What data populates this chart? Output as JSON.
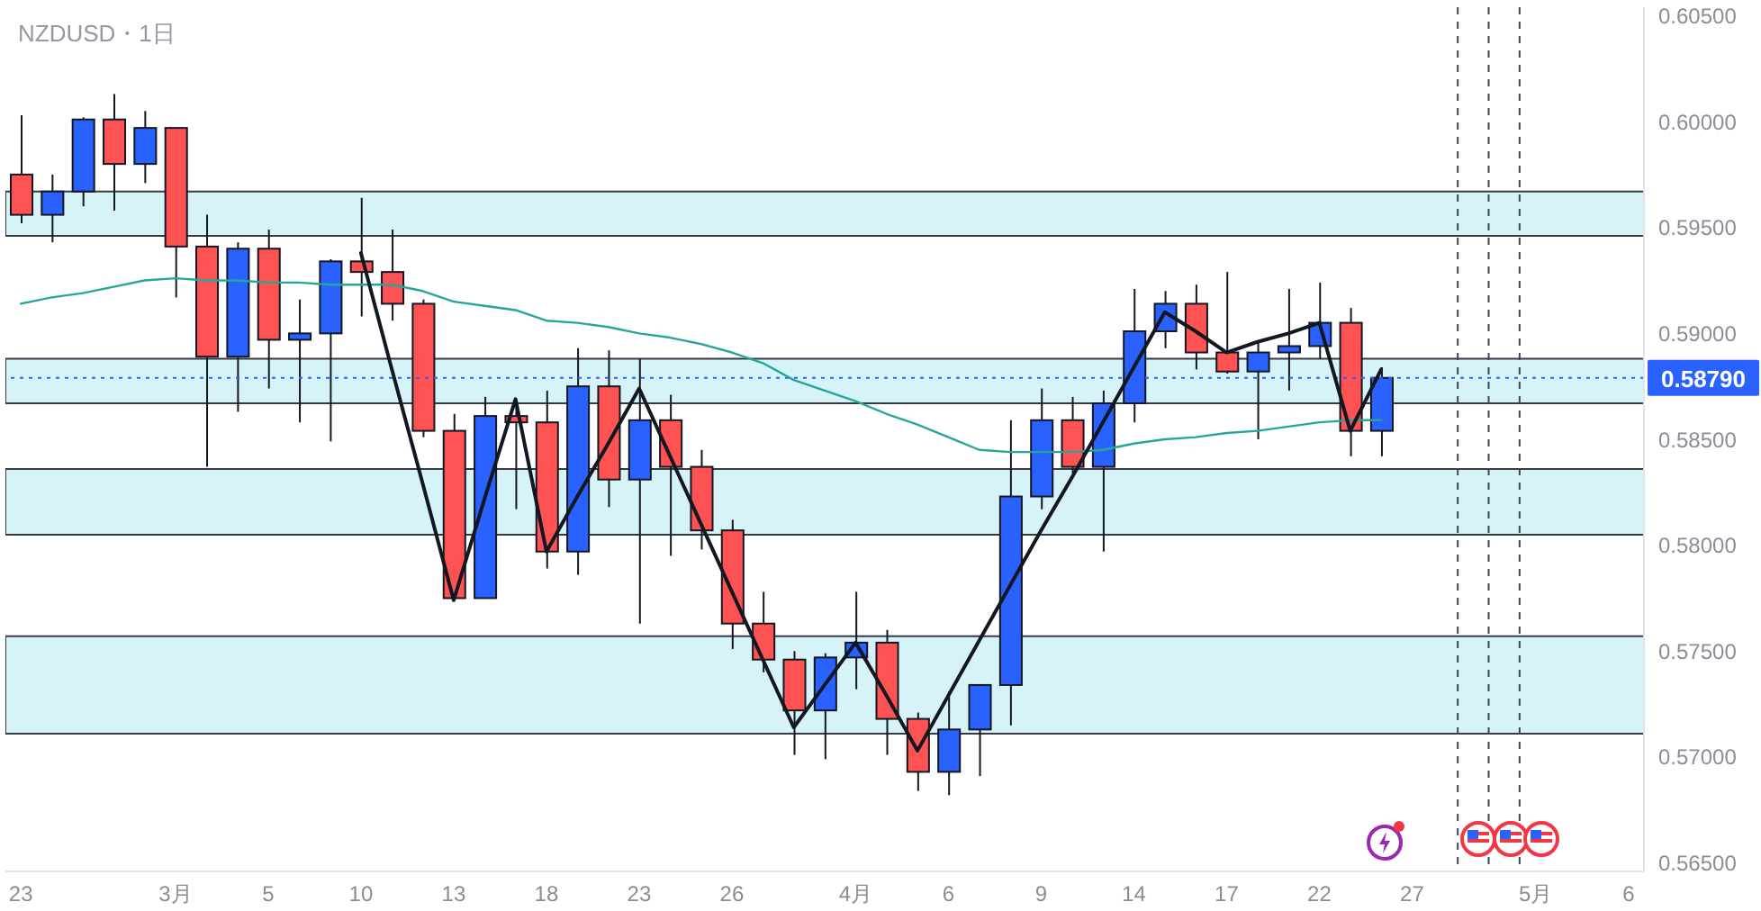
{
  "chart_data": {
    "type": "candlestick",
    "title": "NZDUSD・1日",
    "categories": [
      "23",
      null,
      null,
      null,
      null,
      "3月",
      null,
      null,
      "5",
      null,
      null,
      "10",
      null,
      null,
      "13",
      null,
      null,
      "18",
      null,
      null,
      "23",
      null,
      null,
      "26",
      null,
      null,
      null,
      "4月",
      null,
      null,
      "6",
      null,
      null,
      "9",
      null,
      null,
      "14",
      null,
      null,
      "17",
      null,
      null,
      "22",
      null,
      null,
      "27",
      null,
      null,
      null,
      "5月",
      null,
      null,
      "6"
    ],
    "ylim": [
      0.5646,
      0.6054
    ],
    "yticks": [
      {
        "value": 0.565,
        "label": "0.56500"
      },
      {
        "value": 0.57,
        "label": "0.57000"
      },
      {
        "value": 0.575,
        "label": "0.57500"
      },
      {
        "value": 0.58,
        "label": "0.58000"
      },
      {
        "value": 0.585,
        "label": "0.58500"
      },
      {
        "value": 0.59,
        "label": "0.59000"
      },
      {
        "value": 0.595,
        "label": "0.59500"
      },
      {
        "value": 0.6,
        "label": "0.60000"
      },
      {
        "value": 0.605,
        "label": "0.60500"
      }
    ],
    "series": [
      {
        "ohlc": [
          [
            0.5975,
            0.6003,
            0.5952,
            0.5956
          ],
          [
            0.5956,
            0.5975,
            0.5943,
            0.5967
          ],
          [
            0.5967,
            0.6002,
            0.596,
            0.6001
          ],
          [
            0.6001,
            0.6013,
            0.5958,
            0.598
          ],
          [
            0.598,
            0.6005,
            0.5971,
            0.5997
          ],
          [
            0.5997,
            0.5997,
            0.5917,
            0.5941
          ],
          [
            0.5941,
            0.5956,
            0.5837,
            0.5889
          ],
          [
            0.5889,
            0.5943,
            0.5863,
            0.594
          ],
          [
            0.594,
            0.5949,
            0.5874,
            0.5897
          ],
          [
            0.5897,
            0.5916,
            0.5858,
            0.59
          ],
          [
            0.59,
            0.5935,
            0.5849,
            0.5934
          ],
          [
            0.5934,
            0.5964,
            0.5908,
            0.5929
          ],
          [
            0.5929,
            0.5949,
            0.5906,
            0.5914
          ],
          [
            0.5914,
            0.5916,
            0.5851,
            0.5854
          ],
          [
            0.5854,
            0.5862,
            0.5774,
            0.5775
          ],
          [
            0.5775,
            0.587,
            0.5775,
            0.5861
          ],
          [
            0.5861,
            0.5869,
            0.5817,
            0.5858
          ],
          [
            0.5858,
            0.5873,
            0.5789,
            0.5797
          ],
          [
            0.5797,
            0.5893,
            0.5786,
            0.5875
          ],
          [
            0.5875,
            0.5892,
            0.5818,
            0.5831
          ],
          [
            0.5831,
            0.5888,
            0.5763,
            0.5859
          ],
          [
            0.5859,
            0.5871,
            0.5795,
            0.5837
          ],
          [
            0.5837,
            0.5845,
            0.5798,
            0.5807
          ],
          [
            0.5807,
            0.5812,
            0.5751,
            0.5763
          ],
          [
            0.5763,
            0.5778,
            0.574,
            0.5746
          ],
          [
            0.5746,
            0.575,
            0.5701,
            0.5722
          ],
          [
            0.5722,
            0.5749,
            0.5699,
            0.5747
          ],
          [
            0.5747,
            0.5778,
            0.5732,
            0.5754
          ],
          [
            0.5754,
            0.576,
            0.5701,
            0.5718
          ],
          [
            0.5718,
            0.5721,
            0.5684,
            0.5693
          ],
          [
            0.5693,
            0.5731,
            0.5682,
            0.5713
          ],
          [
            0.5713,
            0.5734,
            0.5691,
            0.5734
          ],
          [
            0.5734,
            0.5859,
            0.5715,
            0.5823
          ],
          [
            0.5823,
            0.5874,
            0.5817,
            0.5859
          ],
          [
            0.5859,
            0.587,
            0.5834,
            0.5837
          ],
          [
            0.5837,
            0.5873,
            0.5797,
            0.5867
          ],
          [
            0.5867,
            0.5921,
            0.5858,
            0.5901
          ],
          [
            0.5901,
            0.592,
            0.5893,
            0.5914
          ],
          [
            0.5914,
            0.5923,
            0.5883,
            0.5891
          ],
          [
            0.5891,
            0.5929,
            0.5881,
            0.5882
          ],
          [
            0.5882,
            0.5896,
            0.585,
            0.5891
          ],
          [
            0.5891,
            0.5921,
            0.5873,
            0.5894
          ],
          [
            0.5894,
            0.5924,
            0.5888,
            0.5905
          ],
          [
            0.5905,
            0.5912,
            0.5842,
            0.5854
          ],
          [
            0.5854,
            0.5884,
            0.5842,
            0.5879
          ],
          null,
          null,
          null,
          null,
          null,
          null,
          null,
          null
        ],
        "colors": [
          "#ff5252",
          "#2962ff",
          "#2962ff",
          "#ff5252",
          "#2962ff",
          "#ff5252",
          "#ff5252",
          "#2962ff",
          "#ff5252",
          "#2962ff",
          "#2962ff",
          "#ff5252",
          "#ff5252",
          "#ff5252",
          "#ff5252",
          "#2962ff",
          "#ff5252",
          "#ff5252",
          "#2962ff",
          "#ff5252",
          "#2962ff",
          "#ff5252",
          "#ff5252",
          "#ff5252",
          "#ff5252",
          "#ff5252",
          "#2962ff",
          "#2962ff",
          "#ff5252",
          "#ff5252",
          "#2962ff",
          "#2962ff",
          "#2962ff",
          "#2962ff",
          "#ff5252",
          "#2962ff",
          "#2962ff",
          "#2962ff",
          "#ff5252",
          "#ff5252",
          "#2962ff",
          "#2962ff",
          "#2962ff",
          "#ff5252",
          "#2962ff",
          null,
          null,
          null,
          null,
          null,
          null,
          null,
          null
        ]
      },
      {
        "type": "line",
        "color": "#26a69a",
        "values": [
          0.5914,
          0.5917,
          0.5919,
          0.5922,
          0.5925,
          0.5926,
          0.5925,
          0.5925,
          0.5924,
          0.5924,
          0.5923,
          0.5923,
          0.5923,
          0.592,
          0.5915,
          0.5913,
          0.5911,
          0.5906,
          0.5905,
          0.5903,
          0.59,
          0.5898,
          0.5895,
          0.5891,
          0.5886,
          0.5878,
          0.5873,
          0.5868,
          0.5862,
          0.5857,
          0.5851,
          0.5845,
          0.5844,
          0.5844,
          0.5844,
          0.5845,
          0.5848,
          0.585,
          0.5851,
          0.5853,
          0.5854,
          0.5856,
          0.5858,
          0.5859,
          0.5859,
          null,
          null,
          null,
          null,
          null,
          null,
          null,
          null
        ]
      },
      {
        "type": "line",
        "color": "#131722",
        "values": [
          null,
          null,
          null,
          null,
          null,
          null,
          null,
          null,
          null,
          null,
          null,
          0.5938,
          0.5883,
          0.5829,
          0.5774,
          0.5822,
          0.5869,
          0.5797,
          0.5823,
          0.5848,
          0.5874,
          0.5842,
          0.581,
          0.5778,
          0.5746,
          0.5714,
          0.5734,
          0.5754,
          0.5729,
          0.5703,
          0.5729,
          0.5755,
          0.5781,
          0.5807,
          0.5832,
          0.5858,
          0.5884,
          0.591,
          0.5901,
          0.5891,
          0.5896,
          0.59,
          0.5905,
          0.5854,
          0.5883,
          null,
          null,
          null,
          null,
          null,
          null,
          null,
          null
        ]
      }
    ],
    "bands": [
      {
        "axis": "y",
        "from": 0.5946,
        "to": 0.5967,
        "color": "#d6f4f7"
      },
      {
        "axis": "y",
        "from": 0.5867,
        "to": 0.5888,
        "color": "#d6f4f7"
      },
      {
        "axis": "y",
        "from": 0.5805,
        "to": 0.5836,
        "color": "#d6f4f7"
      },
      {
        "axis": "y",
        "from": 0.5711,
        "to": 0.5757,
        "color": "#d6f4f7"
      }
    ],
    "ref_lines": [
      {
        "axis": "y",
        "value": 0.5879,
        "label": "0.58790",
        "color": "#2962ff",
        "line_style": "dotted"
      }
    ]
  }
}
